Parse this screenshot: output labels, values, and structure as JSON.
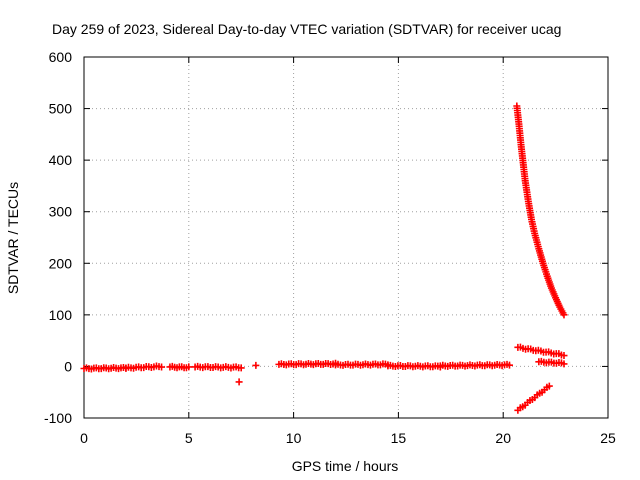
{
  "chart_data": {
    "type": "scatter",
    "title": "Day 259 of 2023, Sidereal Day-to-day VTEC variation (SDTVAR) for receiver ucag",
    "xlabel": "GPS time / hours",
    "ylabel": "SDTVAR / TECUs",
    "xlim": [
      0,
      25
    ],
    "ylim": [
      -100,
      600
    ],
    "xticks": [
      "0",
      "5",
      "10",
      "15",
      "20",
      "25"
    ],
    "yticks": [
      "-100",
      "0",
      "100",
      "200",
      "300",
      "400",
      "500",
      "600"
    ],
    "grid": true,
    "marker": "plus",
    "color": "#ff0000",
    "series": [
      {
        "name": "baseline",
        "segments": [
          {
            "x0": 0.0,
            "x1": 2.0,
            "y0": -4,
            "y1": -3
          },
          {
            "x0": 2.0,
            "x1": 3.7,
            "y0": -3,
            "y1": 0
          },
          {
            "x0": 4.1,
            "x1": 5.0,
            "y0": -1,
            "y1": -2
          },
          {
            "x0": 5.3,
            "x1": 7.5,
            "y0": -1,
            "y1": -2
          },
          {
            "x0": 9.3,
            "x1": 12.0,
            "y0": 4,
            "y1": 5
          },
          {
            "x0": 12.0,
            "x1": 14.5,
            "y0": 3,
            "y1": 4
          },
          {
            "x0": 14.5,
            "x1": 17.0,
            "y0": 1,
            "y1": 0
          },
          {
            "x0": 17.0,
            "x1": 20.3,
            "y0": 1,
            "y1": 3
          }
        ],
        "points": [
          {
            "x": 8.2,
            "y": 2
          },
          {
            "x": 7.4,
            "y": -30
          }
        ]
      },
      {
        "name": "high-decay",
        "points": [
          {
            "x": 20.65,
            "y": 505
          },
          {
            "x": 20.75,
            "y": 470
          },
          {
            "x": 20.85,
            "y": 430
          },
          {
            "x": 20.95,
            "y": 395
          },
          {
            "x": 21.05,
            "y": 360
          },
          {
            "x": 21.2,
            "y": 320
          },
          {
            "x": 21.35,
            "y": 285
          },
          {
            "x": 21.5,
            "y": 258
          },
          {
            "x": 21.7,
            "y": 228
          },
          {
            "x": 21.9,
            "y": 200
          },
          {
            "x": 22.1,
            "y": 175
          },
          {
            "x": 22.3,
            "y": 152
          },
          {
            "x": 22.5,
            "y": 133
          },
          {
            "x": 22.7,
            "y": 115
          },
          {
            "x": 22.9,
            "y": 100
          }
        ]
      },
      {
        "name": "upper-tail",
        "segments": [
          {
            "x0": 20.7,
            "x1": 22.9,
            "y0": 37,
            "y1": 22
          }
        ]
      },
      {
        "name": "middle-tail",
        "segments": [
          {
            "x0": 21.7,
            "x1": 22.9,
            "y0": 9,
            "y1": 6
          }
        ]
      },
      {
        "name": "negative-branch",
        "segments": [
          {
            "x0": 20.7,
            "x1": 22.2,
            "y0": -85,
            "y1": -38
          }
        ]
      }
    ]
  }
}
